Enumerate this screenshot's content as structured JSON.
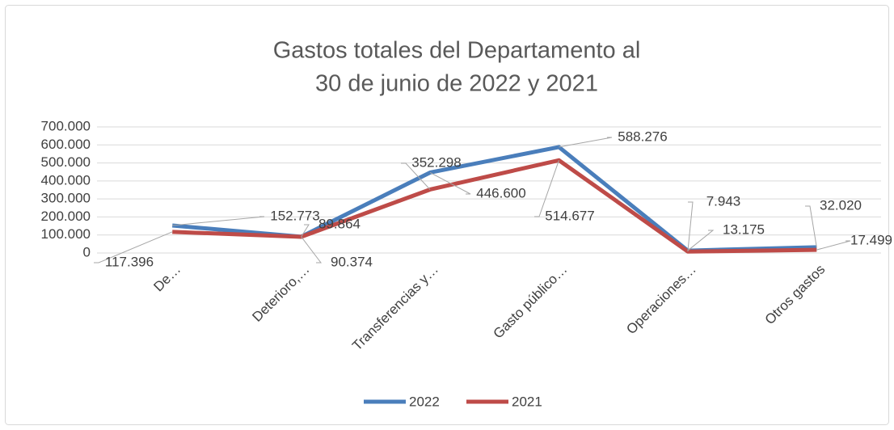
{
  "chart_data": {
    "type": "line",
    "title": [
      "Gastos totales del Departamento al",
      "30 de junio de 2022 y 2021"
    ],
    "categories": [
      "De…",
      "Deterioro,…",
      "Transferencias y…",
      "Gasto público…",
      "Operaciones…",
      "Otros gastos"
    ],
    "series": [
      {
        "name": "2022",
        "color": "#4a7ebb",
        "values": [
          152773,
          90374,
          446600,
          588276,
          13175,
          32020
        ],
        "value_labels": [
          "152.773",
          "90.374",
          "446.600",
          "588.276",
          "13.175",
          "32.020"
        ]
      },
      {
        "name": "2021",
        "color": "#be4b48",
        "values": [
          117396,
          89864,
          352298,
          514677,
          7943,
          17499
        ],
        "value_labels": [
          "117.396",
          "89.864",
          "352.298",
          "514.677",
          "7.943",
          "17.499"
        ]
      }
    ],
    "ylim": [
      0,
      700000
    ],
    "yticks": [
      0,
      {
        "value": 100000,
        "label": "100.000"
      },
      {
        "value": 200000,
        "label": "200.000"
      },
      {
        "value": 300000,
        "label": "300.000"
      },
      {
        "value": 400000,
        "label": "400.000"
      },
      {
        "value": 500000,
        "label": "500.000"
      },
      {
        "value": 600000,
        "label": "600.000"
      },
      {
        "value": 700000,
        "label": "700.000"
      }
    ],
    "grid": true,
    "legend": "bottom"
  }
}
